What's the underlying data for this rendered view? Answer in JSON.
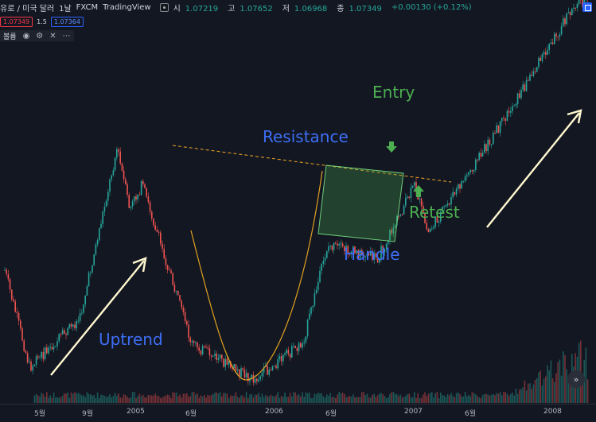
{
  "header": {
    "symbol": "유로 / 미국 달러",
    "interval": "1날",
    "exchange": "FXCM",
    "source": "TradingView",
    "ohlc": [
      {
        "label": "시",
        "value": "1.07219"
      },
      {
        "label": "고",
        "value": "1.07652"
      },
      {
        "label": "저",
        "value": "1.06968"
      },
      {
        "label": "종",
        "value": "1.07349"
      }
    ],
    "change": "+0.00130 (+0.12%)"
  },
  "prices": {
    "bid": "1.07349",
    "spread": "1.5",
    "ask": "1.07364"
  },
  "volume_label": "볼륨",
  "icons": [
    "visibility-icon",
    "settings-icon",
    "close-icon",
    "more-icon",
    "scroll-to-latest-icon",
    "window-icon"
  ],
  "colors": {
    "background": "#131722",
    "up": "#26a69a",
    "down": "#ef5350",
    "resistance": "#f5a623",
    "cup_curve": "#e0a020",
    "annotation_blue": "#3d6ef5",
    "annotation_green": "#4caf50",
    "arrow": "#fff8cf"
  },
  "annotations": {
    "uptrend": "Uptrend",
    "resistance": "Resistance",
    "entry": "Entry",
    "handle": "Handle",
    "retest": "Retest"
  },
  "chart_data": {
    "type": "candlestick",
    "title": "",
    "pattern": "cup and handle",
    "x_ticks": [
      "5월",
      "9월",
      "2005",
      "6월",
      "2006",
      "6월",
      "2007",
      "6월",
      "2008"
    ],
    "grid": false,
    "legend": "none",
    "price_path": [
      {
        "date": "2004-03",
        "price": 1.26
      },
      {
        "date": "2004-05",
        "price": 1.18
      },
      {
        "date": "2004-09",
        "price": 1.22
      },
      {
        "date": "2004-12",
        "price": 1.36
      },
      {
        "date": "2005-01",
        "price": 1.31
      },
      {
        "date": "2005-02",
        "price": 1.33
      },
      {
        "date": "2005-06",
        "price": 1.2
      },
      {
        "date": "2005-11",
        "price": 1.17
      },
      {
        "date": "2006-03",
        "price": 1.2
      },
      {
        "date": "2006-05",
        "price": 1.28
      },
      {
        "date": "2006-09",
        "price": 1.27
      },
      {
        "date": "2006-12",
        "price": 1.33
      },
      {
        "date": "2007-01",
        "price": 1.29
      },
      {
        "date": "2007-07",
        "price": 1.38
      },
      {
        "date": "2008-01",
        "price": 1.48
      }
    ],
    "resistance_line": {
      "start": {
        "date": "2005-02",
        "price": 1.325
      },
      "end": {
        "date": "2007-02",
        "price": 1.295
      }
    },
    "cup_bottom": {
      "date": "2005-11",
      "price": 1.17
    },
    "handle_range": {
      "start": "2006-06",
      "end": "2006-12",
      "high": 1.3,
      "low": 1.255
    },
    "entry": {
      "date": "2006-12",
      "price": 1.33
    },
    "retest": {
      "date": "2007-02",
      "price": 1.3
    }
  }
}
